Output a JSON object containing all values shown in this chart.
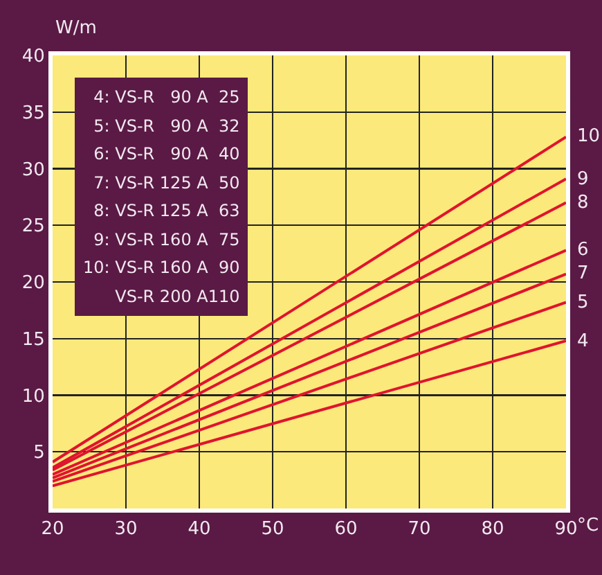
{
  "chart_data": {
    "type": "line",
    "xlabel": "°C",
    "ylabel": "W/m",
    "x": [
      20,
      90
    ],
    "series": [
      {
        "name": "10",
        "color": "#e0142e",
        "values": [
          4.1,
          32.8
        ]
      },
      {
        "name": "9",
        "color": "#e0142e",
        "values": [
          3.6,
          29.1
        ]
      },
      {
        "name": "8",
        "color": "#e0142e",
        "values": [
          3.4,
          27.0
        ]
      },
      {
        "name": "6",
        "color": "#e0142e",
        "values": [
          3.0,
          22.8
        ]
      },
      {
        "name": "7",
        "color": "#e0142e",
        "values": [
          2.7,
          20.7
        ]
      },
      {
        "name": "5",
        "color": "#e0142e",
        "values": [
          2.4,
          18.2
        ]
      },
      {
        "name": "4",
        "color": "#e0142e",
        "values": [
          2.0,
          14.8
        ]
      }
    ],
    "annotations": [
      "4: VS-R   90 A  25",
      "5: VS-R   90 A  32",
      "6: VS-R   90 A  40",
      "7: VS-R 125 A  50",
      "8: VS-R 125 A  63",
      "9: VS-R 160 A  75",
      "10: VS-R 160 A  90",
      "VS-R 200 A110"
    ],
    "xlim": [
      20,
      90
    ],
    "xticks": [
      20,
      30,
      40,
      50,
      60,
      70,
      80,
      90
    ],
    "ylim": [
      0,
      40
    ],
    "yticks": [
      5,
      10,
      15,
      20,
      25,
      30,
      35,
      40
    ],
    "grid": true,
    "legend": false,
    "marker": "none",
    "line_style": "solid"
  }
}
